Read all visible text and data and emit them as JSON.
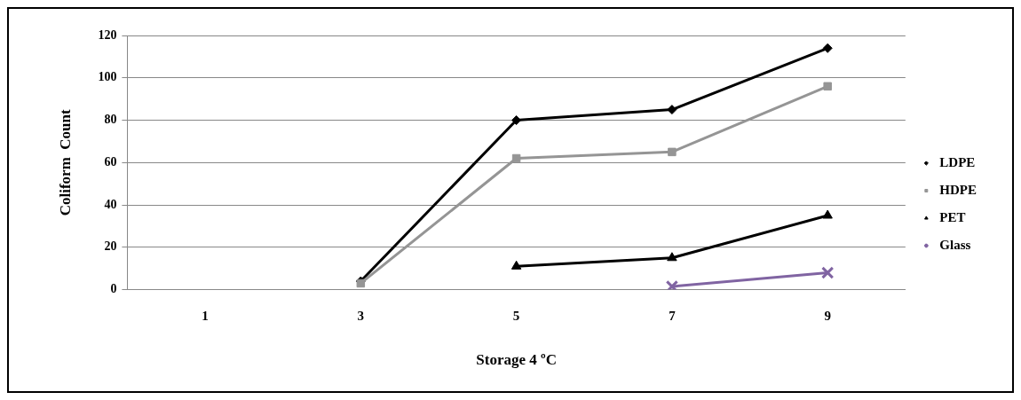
{
  "chart_data": {
    "type": "line",
    "xlabel": "Storage 4 ºC",
    "ylabel": "Coliform  Count",
    "categories": [
      "1",
      "3",
      "5",
      "7",
      "9"
    ],
    "series": [
      {
        "name": "LDPE",
        "color": "#000000",
        "marker": "diamond",
        "values": [
          null,
          4,
          80,
          85,
          114
        ]
      },
      {
        "name": "HDPE",
        "color": "#959595",
        "marker": "square",
        "values": [
          null,
          3,
          62,
          65,
          96
        ]
      },
      {
        "name": "PET",
        "color": "#000000",
        "marker": "triangle",
        "values": [
          null,
          null,
          11,
          15,
          35
        ]
      },
      {
        "name": "Glass",
        "color": "#8064a2",
        "marker": "cross",
        "values": [
          null,
          null,
          null,
          1.5,
          8
        ]
      }
    ],
    "ylim": [
      0,
      120
    ],
    "yticks": [
      0,
      20,
      40,
      60,
      80,
      100,
      120
    ],
    "grid": "y",
    "legend": "right"
  }
}
